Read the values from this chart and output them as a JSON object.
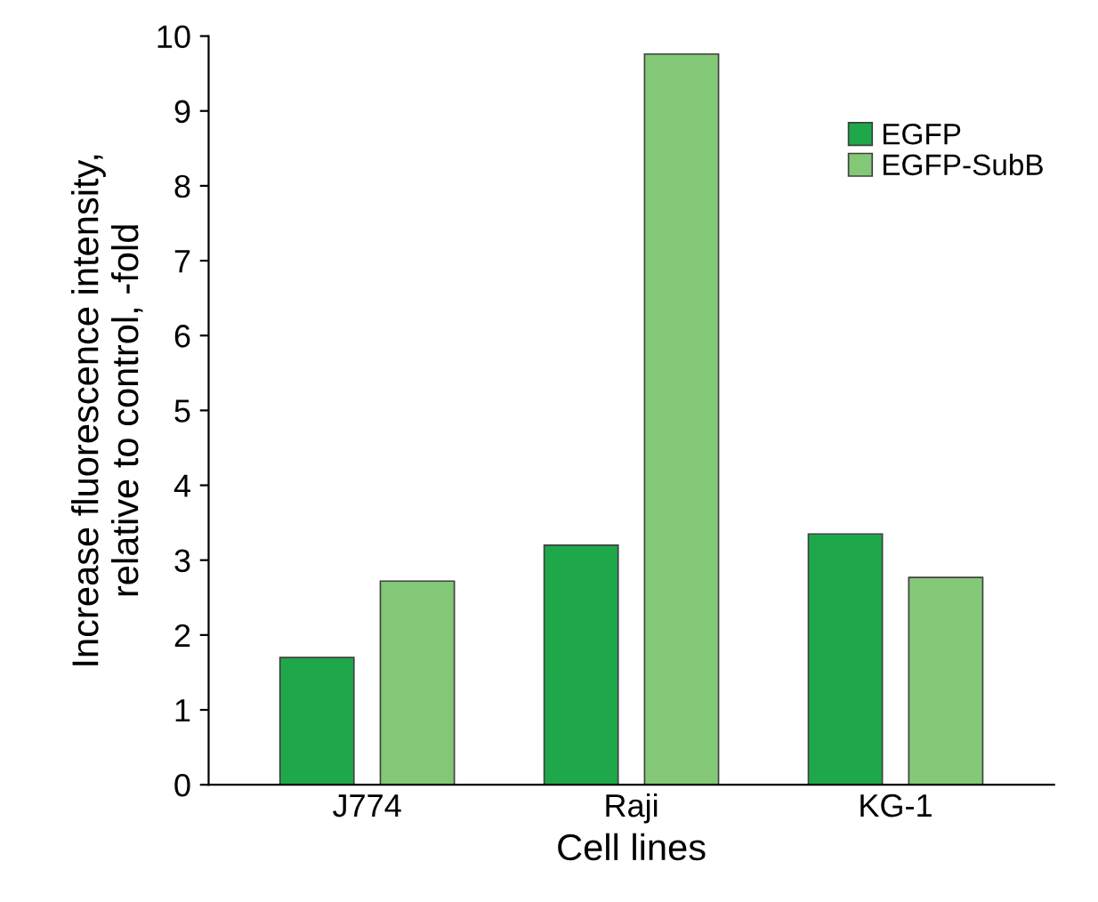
{
  "chart_data": {
    "type": "bar",
    "xlabel": "Cell lines",
    "ylabel": "Increase fluorescence intensity,\nrelative to control, -fold",
    "categories": [
      "J774",
      "Raji",
      "KG-1"
    ],
    "series": [
      {
        "name": "EGFP",
        "color": "#1fa84a",
        "values": [
          1.7,
          3.2,
          3.35
        ]
      },
      {
        "name": "EGFP-SubB",
        "color": "#83c877",
        "values": [
          2.72,
          9.76,
          2.77
        ]
      }
    ],
    "ylim": [
      0,
      10
    ],
    "yticks": [
      0,
      1,
      2,
      3,
      4,
      5,
      6,
      7,
      8,
      9,
      10
    ],
    "grid": false,
    "legend": "top right"
  }
}
